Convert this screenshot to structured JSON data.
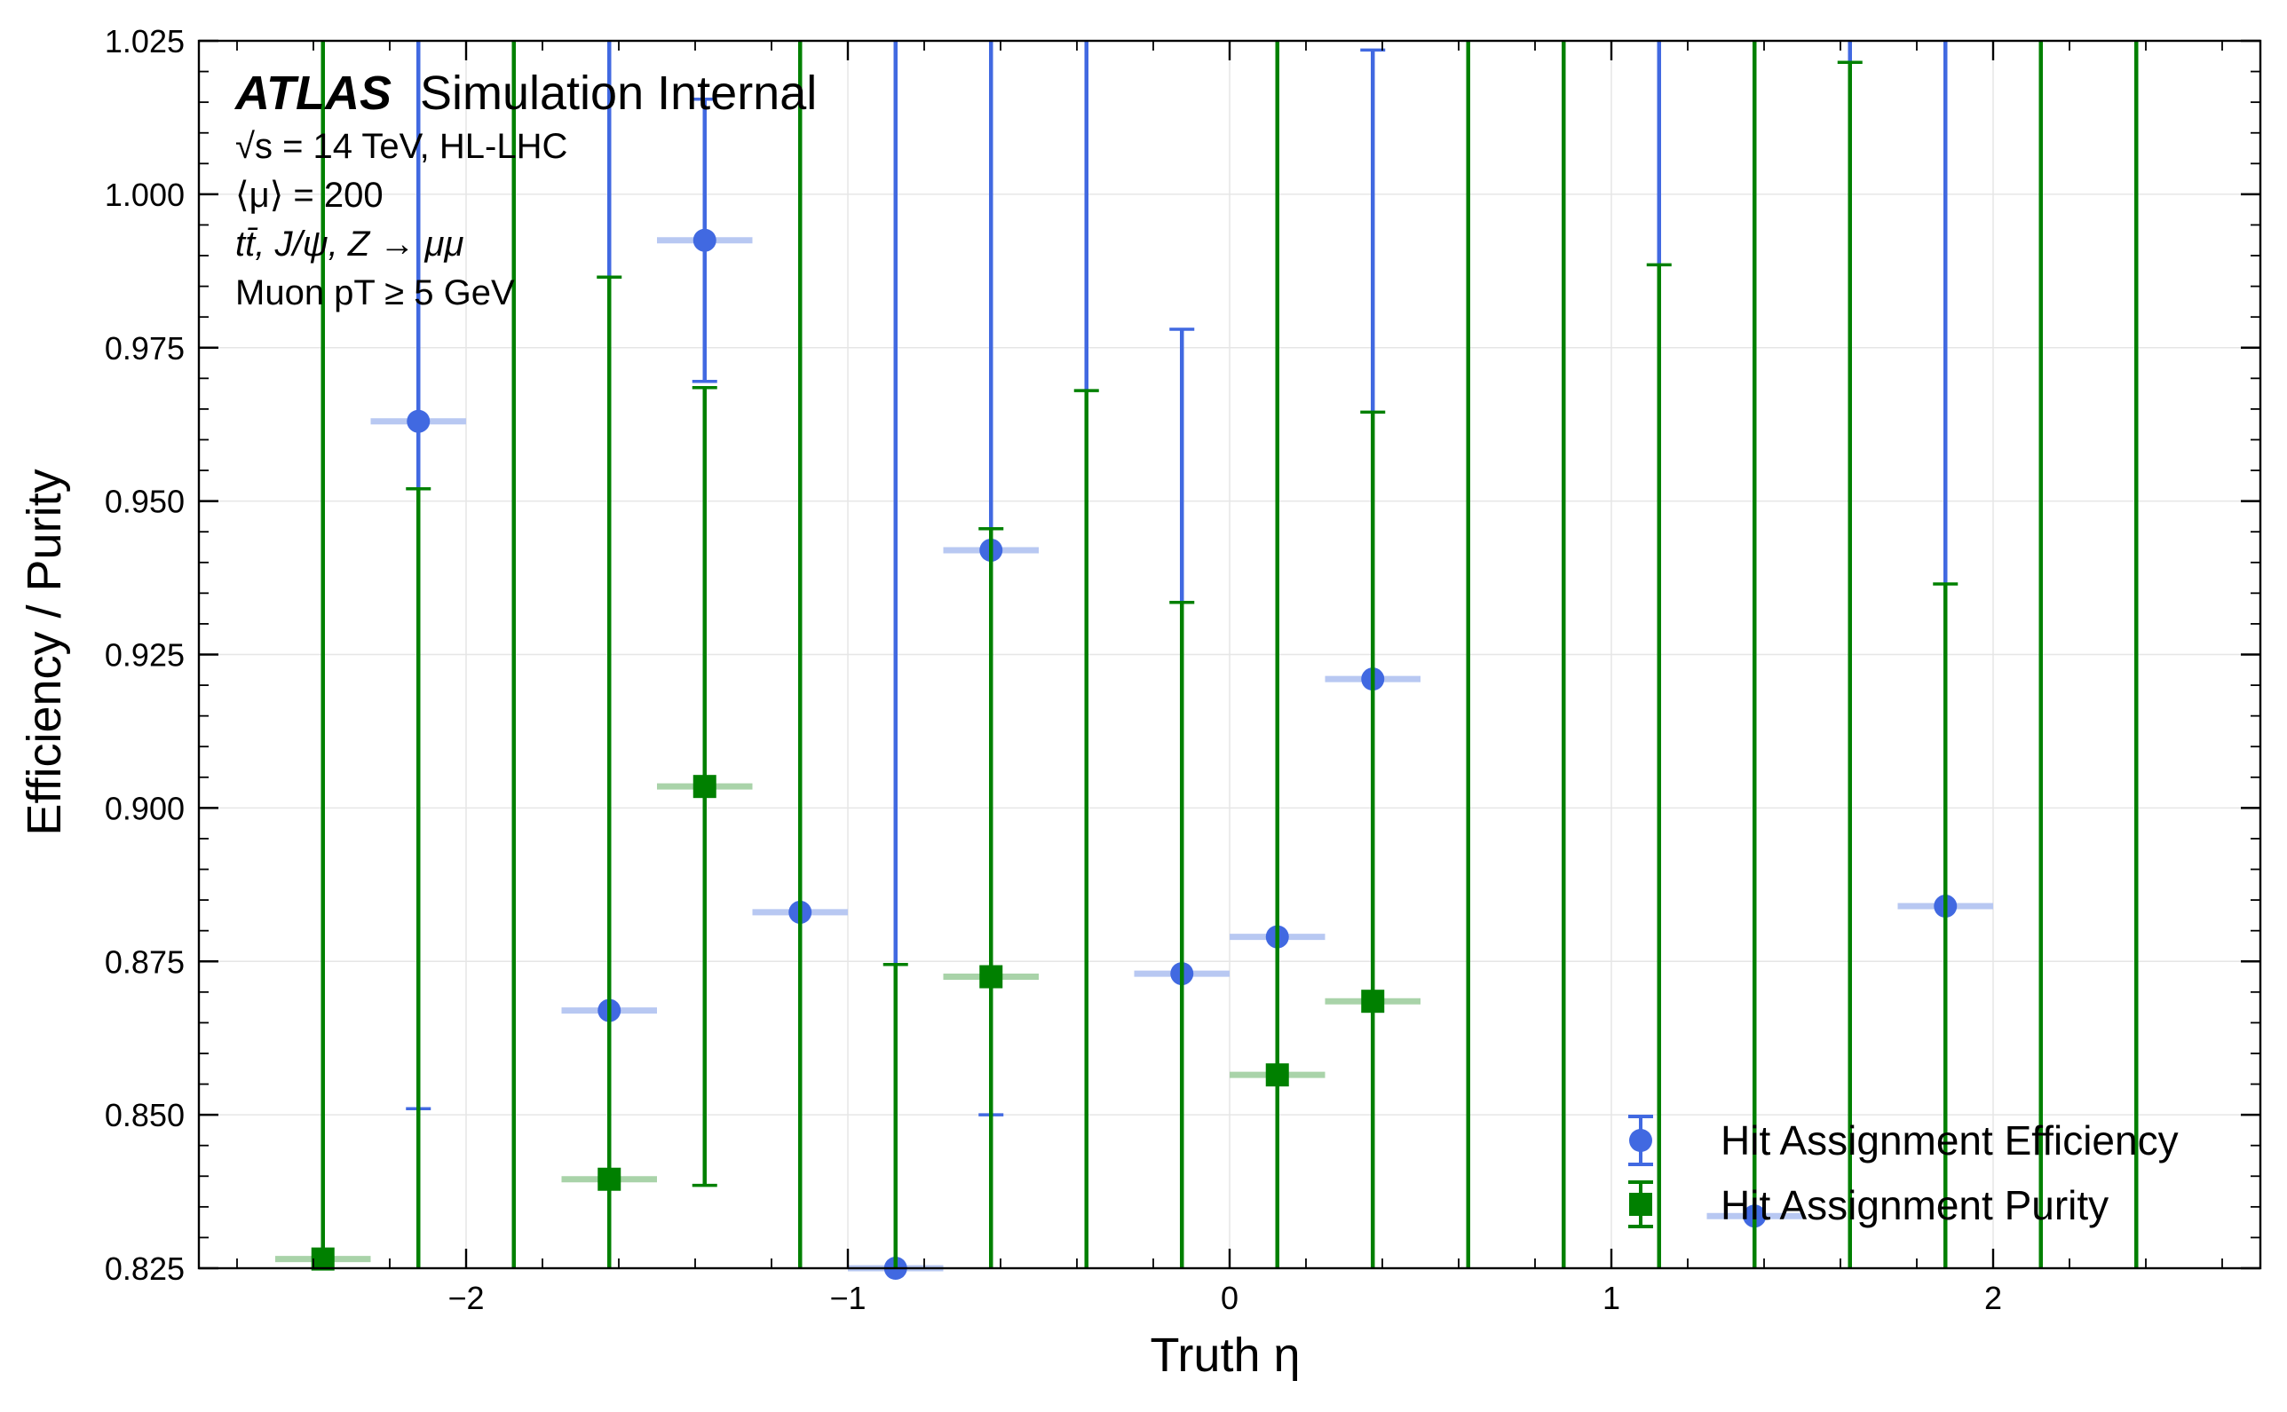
{
  "chart_data": {
    "type": "scatter",
    "xlabel": "Truth η",
    "ylabel": "Efficiency / Purity",
    "xlim": [
      -2.7,
      2.7
    ],
    "ylim": [
      0.825,
      1.025
    ],
    "x_ticks": [
      -2,
      -1,
      0,
      1,
      2
    ],
    "x_tick_labels": [
      "−2",
      "−1",
      "0",
      "1",
      "2"
    ],
    "y_ticks": [
      0.825,
      0.85,
      0.875,
      0.9,
      0.925,
      0.95,
      0.975,
      1.0,
      1.025
    ],
    "y_tick_labels": [
      "0.825",
      "0.850",
      "0.875",
      "0.900",
      "0.925",
      "0.950",
      "0.975",
      "1.000",
      "1.025"
    ],
    "grid": true,
    "legend_position": "lower-right",
    "annotations": {
      "experiment": "ATLAS",
      "status": "Simulation Internal",
      "energy_line": "√s = 14 TeV, HL-LHC",
      "pileup_line": "⟨μ⟩ = 200",
      "process_line": "tt̄, J/ψ, Z → μμ",
      "cut_line": "Muon pT ≥ 5 GeV"
    },
    "series": [
      {
        "name": "Hit Assignment Efficiency",
        "marker": "circle",
        "color": "#4169E1",
        "xerr_color": "#B8C8F2",
        "x": [
          -2.375,
          -2.125,
          -1.875,
          -1.625,
          -1.375,
          -1.125,
          -0.875,
          -0.625,
          -0.375,
          -0.125,
          0.125,
          0.375,
          0.625,
          0.875,
          1.125,
          1.375,
          1.625,
          1.875,
          2.125,
          2.375
        ],
        "y": [
          null,
          0.963,
          null,
          0.867,
          0.9925,
          0.883,
          0.825,
          0.942,
          null,
          0.873,
          0.879,
          0.921,
          null,
          null,
          null,
          0.8335,
          null,
          0.884,
          null,
          null
        ],
        "y_low": [
          null,
          0.851,
          null,
          null,
          0.9695,
          null,
          null,
          0.85,
          null,
          null,
          null,
          null,
          null,
          null,
          null,
          null,
          null,
          null,
          null,
          null
        ],
        "y_high": [
          null,
          null,
          null,
          null,
          1.0155,
          null,
          null,
          null,
          null,
          0.978,
          null,
          1.0235,
          null,
          null,
          null,
          null,
          null,
          null,
          null,
          null
        ],
        "x_half_width": 0.125
      },
      {
        "name": "Hit Assignment Purity",
        "marker": "square",
        "color": "#008000",
        "xerr_color": "#A9D3A9",
        "x": [
          -2.375,
          -2.125,
          -1.875,
          -1.625,
          -1.375,
          -1.125,
          -0.875,
          -0.625,
          -0.375,
          -0.125,
          0.125,
          0.375,
          0.625,
          0.875,
          1.125,
          1.375,
          1.625,
          1.875,
          2.125,
          2.375
        ],
        "y": [
          0.8265,
          null,
          null,
          0.8395,
          0.9035,
          null,
          null,
          0.8725,
          null,
          null,
          0.8565,
          0.8685,
          null,
          null,
          null,
          null,
          null,
          null,
          null,
          null
        ],
        "y_low": [
          null,
          null,
          null,
          null,
          0.8385,
          null,
          null,
          null,
          null,
          null,
          null,
          null,
          null,
          null,
          null,
          null,
          null,
          null,
          null,
          null
        ],
        "y_high": [
          null,
          0.952,
          null,
          0.9865,
          0.9685,
          null,
          0.8745,
          0.9455,
          0.968,
          0.9335,
          null,
          0.9645,
          null,
          null,
          0.9885,
          null,
          1.0215,
          0.9365,
          null,
          null
        ],
        "x_half_width": 0.125
      }
    ]
  }
}
